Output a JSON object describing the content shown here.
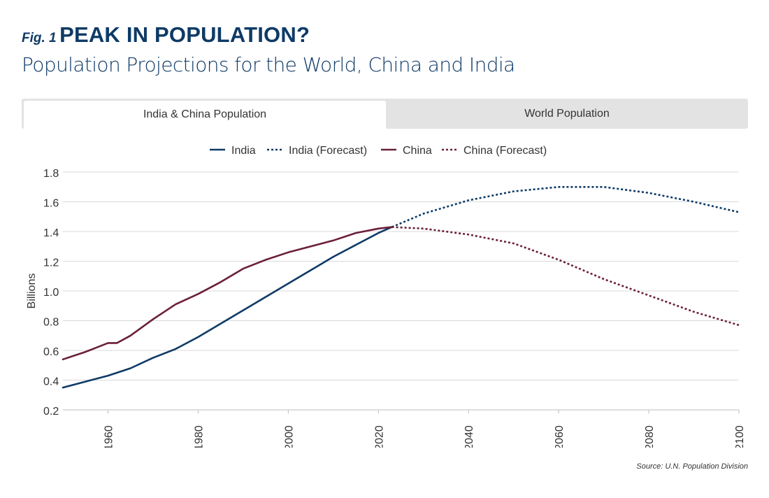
{
  "header": {
    "fig_label": "Fig. 1",
    "title": "PEAK IN POPULATION?",
    "subtitle": "Population Projections for the World, China and India"
  },
  "tabs": [
    {
      "label": "India & China Population",
      "active": true
    },
    {
      "label": "World Population",
      "active": false
    }
  ],
  "source": "Source: U.N. Population Division",
  "colors": {
    "india": "#0e3a66",
    "china": "#6b1f3a",
    "title": "#0e3a66"
  },
  "chart_data": {
    "type": "line",
    "title": "",
    "xlabel": "",
    "ylabel": "Billions",
    "xlim": [
      1950,
      2100
    ],
    "ylim": [
      0.2,
      1.8
    ],
    "xticks": [
      1960,
      1980,
      2000,
      2020,
      2040,
      2060,
      2080,
      2100
    ],
    "yticks": [
      0.2,
      0.4,
      0.6,
      0.8,
      1.0,
      1.2,
      1.4,
      1.6,
      1.8
    ],
    "ytick_labels": [
      "0.2",
      "0.4",
      "0.6",
      "0.8",
      "1.0",
      "1.2",
      "1.4",
      "1.6",
      "1.8"
    ],
    "grid": "horizontal",
    "legend_position": "top",
    "series": [
      {
        "name": "India",
        "style": "solid",
        "color": "#0e3a66",
        "x": [
          1950,
          1955,
          1960,
          1965,
          1970,
          1975,
          1980,
          1985,
          1990,
          1995,
          2000,
          2005,
          2010,
          2015,
          2020,
          2023
        ],
        "y": [
          0.35,
          0.39,
          0.43,
          0.48,
          0.55,
          0.61,
          0.69,
          0.78,
          0.87,
          0.96,
          1.05,
          1.14,
          1.23,
          1.31,
          1.39,
          1.43
        ]
      },
      {
        "name": "India (Forecast)",
        "style": "dotted",
        "color": "#0e3a66",
        "x": [
          2023,
          2030,
          2040,
          2050,
          2060,
          2070,
          2080,
          2090,
          2100
        ],
        "y": [
          1.43,
          1.52,
          1.61,
          1.67,
          1.7,
          1.7,
          1.66,
          1.6,
          1.53
        ]
      },
      {
        "name": "China",
        "style": "solid",
        "color": "#6b1f3a",
        "x": [
          1950,
          1955,
          1960,
          1962,
          1965,
          1970,
          1975,
          1980,
          1985,
          1990,
          1995,
          2000,
          2005,
          2010,
          2015,
          2020,
          2023
        ],
        "y": [
          0.54,
          0.59,
          0.65,
          0.65,
          0.7,
          0.81,
          0.91,
          0.98,
          1.06,
          1.15,
          1.21,
          1.26,
          1.3,
          1.34,
          1.39,
          1.42,
          1.43
        ]
      },
      {
        "name": "China (Forecast)",
        "style": "dotted",
        "color": "#6b1f3a",
        "x": [
          2023,
          2030,
          2040,
          2050,
          2060,
          2070,
          2080,
          2090,
          2100
        ],
        "y": [
          1.43,
          1.42,
          1.38,
          1.32,
          1.21,
          1.08,
          0.97,
          0.86,
          0.77
        ]
      }
    ]
  }
}
